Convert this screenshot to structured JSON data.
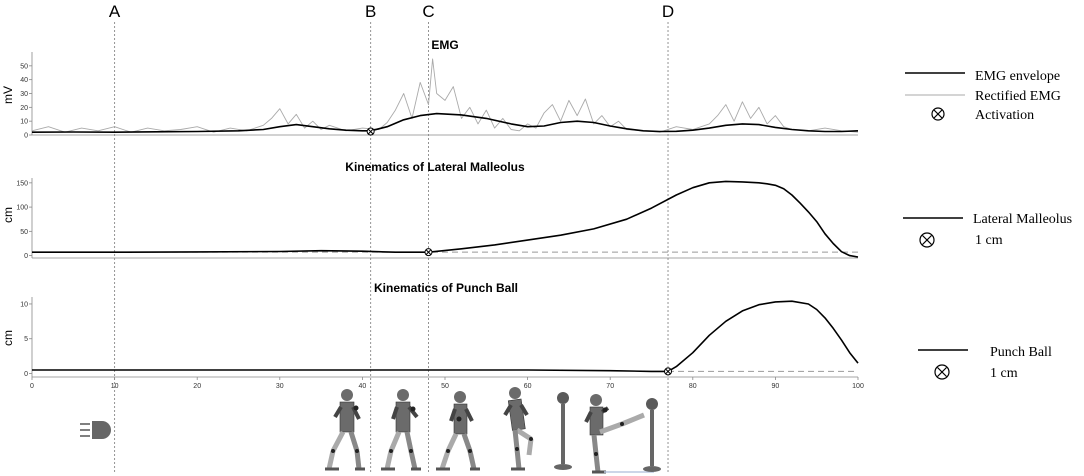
{
  "events": [
    {
      "label": "A",
      "x": 10
    },
    {
      "label": "B",
      "x": 41
    },
    {
      "label": "C",
      "x": 48
    },
    {
      "label": "D",
      "x": 77
    }
  ],
  "chart_data": [
    {
      "type": "line",
      "title": "EMG",
      "ylabel": "mV",
      "xlim": [
        0,
        100
      ],
      "ylim": [
        0,
        60
      ],
      "yticks": [
        0,
        10,
        20,
        30,
        40,
        50
      ],
      "series": [
        {
          "name": "EMG envelope",
          "color": "#000000",
          "x": [
            0,
            5,
            10,
            15,
            20,
            25,
            28,
            30,
            32,
            34,
            36,
            38,
            40,
            41,
            43,
            45,
            47,
            49,
            52,
            55,
            58,
            60,
            62,
            64,
            66,
            68,
            70,
            72,
            74,
            76,
            78,
            80,
            82,
            84,
            86,
            88,
            90,
            92,
            94,
            96,
            98,
            100
          ],
          "y": [
            2,
            2.2,
            2,
            2.3,
            2.5,
            3,
            4,
            6,
            7.5,
            6,
            4.5,
            3.5,
            3,
            3,
            6,
            11,
            14,
            15.5,
            14.5,
            12,
            8,
            6,
            6.5,
            9,
            10,
            9,
            6.5,
            4.5,
            3,
            2.5,
            2.7,
            3.5,
            5,
            7,
            8,
            7.5,
            5.5,
            4,
            3,
            2.5,
            2.5,
            3
          ]
        },
        {
          "name": "Rectified EMG",
          "color": "#aaaaaa",
          "x": [
            0,
            2,
            4,
            6,
            8,
            10,
            12,
            14,
            16,
            18,
            20,
            22,
            24,
            26,
            28,
            29,
            30,
            31,
            32,
            33,
            34,
            35,
            36,
            38,
            40,
            42,
            43,
            44,
            45,
            46,
            47,
            48,
            48.5,
            49,
            50,
            51,
            52,
            53,
            54,
            55,
            56,
            57,
            58,
            59,
            60,
            61,
            62,
            63,
            64,
            65,
            66,
            67,
            68,
            69,
            70,
            71,
            72,
            74,
            76,
            78,
            80,
            82,
            83,
            84,
            85,
            86,
            87,
            88,
            89,
            90,
            91,
            92,
            94,
            96,
            98,
            100
          ],
          "y": [
            3,
            6,
            2,
            5,
            3,
            6,
            2,
            5,
            3,
            4,
            6,
            2,
            5,
            3,
            7,
            12,
            19,
            8,
            15,
            5,
            10,
            4,
            7,
            3,
            5,
            4,
            9,
            18,
            30,
            12,
            38,
            22,
            55,
            30,
            25,
            35,
            12,
            20,
            8,
            18,
            5,
            12,
            4,
            3,
            8,
            5,
            16,
            22,
            10,
            25,
            14,
            26,
            8,
            14,
            6,
            10,
            4,
            3,
            2,
            6,
            4,
            8,
            14,
            22,
            10,
            24,
            12,
            20,
            8,
            14,
            6,
            4,
            3,
            5,
            3,
            2
          ]
        }
      ],
      "markers": [
        {
          "label": "Activation",
          "x": 41,
          "y": 2.5
        }
      ]
    },
    {
      "type": "line",
      "title": "Kinematics of Lateral Malleolus",
      "ylabel": "cm",
      "xlim": [
        0,
        100
      ],
      "ylim": [
        -5,
        160
      ],
      "yticks": [
        0,
        50,
        100,
        150
      ],
      "series": [
        {
          "name": "Lateral Malleolus",
          "color": "#000000",
          "x": [
            0,
            10,
            20,
            30,
            35,
            40,
            44,
            48,
            52,
            56,
            60,
            64,
            68,
            72,
            75,
            78,
            80,
            82,
            84,
            86,
            88,
            89,
            90,
            91,
            92,
            93,
            94,
            95,
            96,
            97,
            98,
            99,
            100
          ],
          "y": [
            7,
            7,
            7.5,
            8.5,
            10,
            9,
            7,
            7,
            14,
            22,
            32,
            42,
            55,
            75,
            98,
            125,
            140,
            150,
            153,
            152,
            150,
            148,
            145,
            138,
            125,
            108,
            90,
            70,
            45,
            25,
            8,
            0,
            -3
          ]
        }
      ],
      "reference": {
        "label": "1 cm",
        "y": 7,
        "x_from": 0,
        "x_to": 100
      },
      "markers": [
        {
          "label": "1 cm",
          "x": 48,
          "y": 7
        }
      ]
    },
    {
      "type": "line",
      "title": "Kinematics of Punch Ball",
      "ylabel": "cm",
      "xlim": [
        0,
        100
      ],
      "ylim": [
        -0.5,
        11
      ],
      "yticks": [
        0,
        5,
        10
      ],
      "xticks": [
        0,
        10,
        20,
        30,
        40,
        50,
        60,
        70,
        80,
        90,
        100
      ],
      "series": [
        {
          "name": "Punch Ball",
          "color": "#000000",
          "x": [
            0,
            10,
            20,
            30,
            40,
            50,
            60,
            70,
            75,
            77,
            78,
            80,
            82,
            84,
            86,
            88,
            90,
            92,
            94,
            95,
            96,
            97,
            98,
            99,
            100
          ],
          "y": [
            0.5,
            0.5,
            0.5,
            0.5,
            0.5,
            0.5,
            0.5,
            0.4,
            0.3,
            0.3,
            1,
            3,
            5.5,
            7.5,
            9,
            9.9,
            10.3,
            10.4,
            10,
            9.2,
            8,
            6.5,
            4.8,
            3,
            1.5
          ]
        }
      ],
      "reference": {
        "label": "1 cm",
        "y": 0.3,
        "x_from": 77,
        "x_to": 100
      },
      "markers": [
        {
          "label": "1 cm",
          "x": 77,
          "y": 0.3
        }
      ]
    }
  ],
  "legend": {
    "emg_envelope": "EMG envelope",
    "rectified_emg": "Rectified EMG",
    "activation": "Activation",
    "lateral_malleolus": "Lateral Malleolus",
    "lateral_malleolus_unit": "1 cm",
    "punch_ball": "Punch Ball",
    "punch_ball_unit": "1 cm"
  },
  "illustrations": [
    "led-icon",
    "kicker-figure-stance-1",
    "kicker-figure-stance-2",
    "kicker-figure-stance-3",
    "kicker-figure-knee-raise",
    "punch-ball",
    "kicker-figure-kick"
  ]
}
